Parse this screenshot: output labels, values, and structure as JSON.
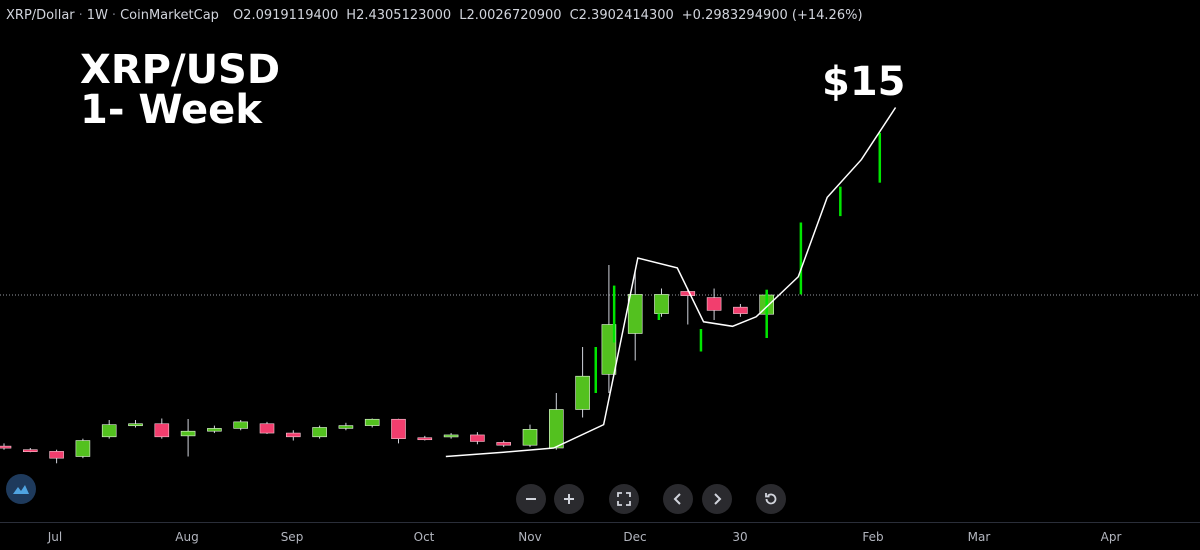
{
  "legend": {
    "symbol": "XRP/Dollar",
    "interval": "1W",
    "source": "CoinMarketCap",
    "open_label": "O",
    "open": "2.0919119400",
    "high_label": "H",
    "high": "2.4305123000",
    "low_label": "L",
    "low": "2.0026720900",
    "close_label": "C",
    "close": "2.3902414300",
    "change": "+0.2983294900 (+14.26%)"
  },
  "title": {
    "line1": "XRP/USD",
    "line2": "1- Week"
  },
  "colors": {
    "up": "#53c11f",
    "down": "#f23e6e",
    "bg": "#000000",
    "projection": "#00e600",
    "line": "#ffffff"
  },
  "toolbar": {
    "zoom_out": "minus-icon",
    "zoom_in": "plus-icon",
    "fullscreen": "fullscreen-icon",
    "back": "chevron-left-icon",
    "forward": "chevron-right-icon",
    "reset": "reset-icon"
  },
  "chart_data": {
    "type": "candlestick",
    "annotation": "$15",
    "x_ticks": [
      "Jul",
      "Aug",
      "Sep",
      "Oct",
      "Nov",
      "Dec",
      "30",
      "Feb",
      "Mar",
      "Apr"
    ],
    "current_price": 2.39,
    "candles": [
      {
        "x": 0,
        "o": 0.52,
        "c": 0.5,
        "h": 0.55,
        "l": 0.48
      },
      {
        "x": 1,
        "o": 0.48,
        "c": 0.47,
        "h": 0.5,
        "l": 0.45
      },
      {
        "x": 2,
        "o": 0.46,
        "c": 0.38,
        "h": 0.48,
        "l": 0.32
      },
      {
        "x": 3,
        "o": 0.4,
        "c": 0.58,
        "h": 0.6,
        "l": 0.38
      },
      {
        "x": 4,
        "o": 0.62,
        "c": 0.75,
        "h": 0.8,
        "l": 0.6
      },
      {
        "x": 5,
        "o": 0.74,
        "c": 0.76,
        "h": 0.8,
        "l": 0.72
      },
      {
        "x": 6,
        "o": 0.76,
        "c": 0.62,
        "h": 0.86,
        "l": 0.6
      },
      {
        "x": 7,
        "o": 0.63,
        "c": 0.68,
        "h": 0.84,
        "l": 0.4
      },
      {
        "x": 8,
        "o": 0.68,
        "c": 0.71,
        "h": 0.74,
        "l": 0.66
      },
      {
        "x": 9,
        "o": 0.71,
        "c": 0.78,
        "h": 0.8,
        "l": 0.69
      },
      {
        "x": 10,
        "o": 0.76,
        "c": 0.66,
        "h": 0.78,
        "l": 0.65
      },
      {
        "x": 11,
        "o": 0.66,
        "c": 0.62,
        "h": 0.69,
        "l": 0.58
      },
      {
        "x": 12,
        "o": 0.62,
        "c": 0.72,
        "h": 0.74,
        "l": 0.6
      },
      {
        "x": 13,
        "o": 0.71,
        "c": 0.74,
        "h": 0.77,
        "l": 0.69
      },
      {
        "x": 14,
        "o": 0.74,
        "c": 0.83,
        "h": 0.86,
        "l": 0.72
      },
      {
        "x": 15,
        "o": 0.83,
        "c": 0.6,
        "h": 0.85,
        "l": 0.55
      },
      {
        "x": 16,
        "o": 0.61,
        "c": 0.6,
        "h": 0.63,
        "l": 0.58
      },
      {
        "x": 17,
        "o": 0.62,
        "c": 0.64,
        "h": 0.66,
        "l": 0.6
      },
      {
        "x": 18,
        "o": 0.64,
        "c": 0.57,
        "h": 0.67,
        "l": 0.54
      },
      {
        "x": 19,
        "o": 0.56,
        "c": 0.53,
        "h": 0.58,
        "l": 0.51
      },
      {
        "x": 20,
        "o": 0.53,
        "c": 0.7,
        "h": 0.75,
        "l": 0.51
      },
      {
        "x": 21,
        "o": 0.5,
        "c": 1.05,
        "h": 1.2,
        "l": 0.48
      },
      {
        "x": 22,
        "o": 1.05,
        "c": 1.38,
        "h": 1.7,
        "l": 0.9
      },
      {
        "x": 23,
        "o": 1.4,
        "c": 1.95,
        "h": 2.9,
        "l": 1.2
      },
      {
        "x": 24,
        "o": 1.85,
        "c": 2.4,
        "h": 2.8,
        "l": 1.55
      },
      {
        "x": 25,
        "o": 2.1,
        "c": 2.4,
        "h": 2.5,
        "l": 2.05
      },
      {
        "x": 26,
        "o": 2.45,
        "c": 2.38,
        "h": 2.5,
        "l": 1.95
      },
      {
        "x": 27,
        "o": 2.35,
        "c": 2.15,
        "h": 2.5,
        "l": 2.0
      },
      {
        "x": 28,
        "o": 2.2,
        "c": 2.1,
        "h": 2.25,
        "l": 2.05
      },
      {
        "x": 29,
        "o": 2.09,
        "c": 2.39,
        "h": 2.43,
        "l": 2.0
      }
    ],
    "projection_bars": [
      {
        "x": 22.5,
        "h": 1.7,
        "l": 1.2
      },
      {
        "x": 23.2,
        "h": 2.55,
        "l": 1.75
      },
      {
        "x": 24.9,
        "h": 2.1,
        "l": 2.0
      },
      {
        "x": 26.5,
        "h": 1.9,
        "l": 1.65
      },
      {
        "x": 29.0,
        "h": 2.48,
        "l": 1.8
      },
      {
        "x": 30.3,
        "h": 4.3,
        "l": 2.4
      },
      {
        "x": 31.8,
        "h": 6.0,
        "l": 4.5
      },
      {
        "x": 33.3,
        "h": 9.5,
        "l": 6.3
      }
    ],
    "projection_line": [
      {
        "x": 16.8,
        "y": 0.4
      },
      {
        "x": 19.0,
        "y": 0.45
      },
      {
        "x": 20.9,
        "y": 0.5
      },
      {
        "x": 22.8,
        "y": 0.75
      },
      {
        "x": 24.1,
        "y": 3.2
      },
      {
        "x": 25.6,
        "y": 2.85
      },
      {
        "x": 26.6,
        "y": 1.98
      },
      {
        "x": 27.7,
        "y": 1.93
      },
      {
        "x": 28.6,
        "y": 2.05
      },
      {
        "x": 30.2,
        "y": 2.7
      },
      {
        "x": 31.3,
        "y": 5.2
      },
      {
        "x": 32.6,
        "y": 7.8
      },
      {
        "x": 33.9,
        "y": 12.5
      }
    ]
  }
}
